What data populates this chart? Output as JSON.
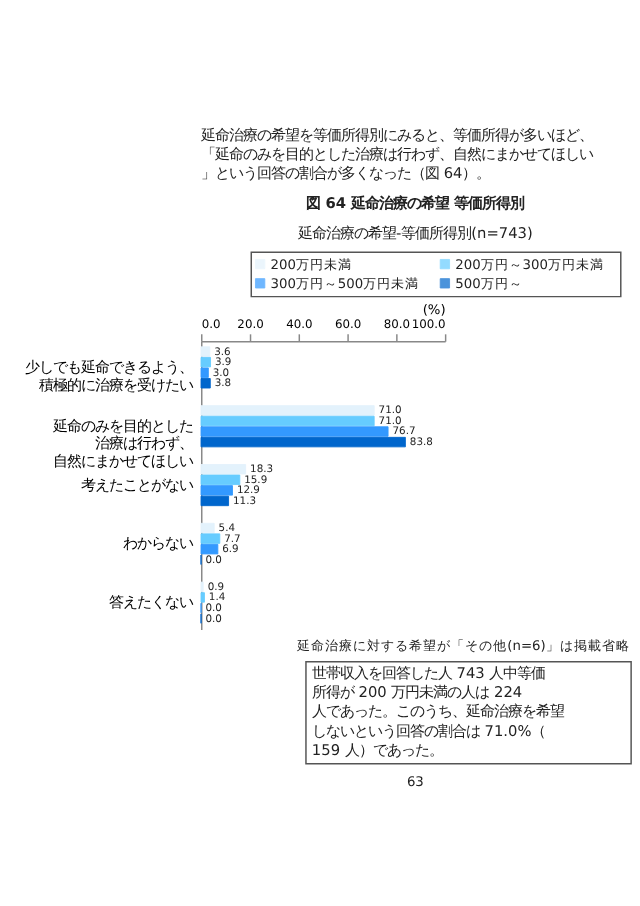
{
  "chart_data": {
    "type": "bar",
    "orientation": "horizontal",
    "title": "図 64 延命治療の希望 等価所得別",
    "subtitle": "延命治療の希望-等価所得別(n=743)",
    "xlabel": "(%)",
    "categories": [
      "少しでも延命できるよう、積極的に治療を受けたい",
      "延命のみを目的とした治療は行わず、自然にまかせてほしい",
      "考えたことがない",
      "わからない",
      "答えたくない"
    ],
    "series": [
      {
        "name": "200万円未満",
        "color": "#e3f2fc",
        "values": [
          3.6,
          71.0,
          18.3,
          5.4,
          0.9
        ],
        "value_labels": [
          "3.6",
          "71.0",
          "18.3",
          "5.4",
          "0.9"
        ]
      },
      {
        "name": "200万円～300万円未満",
        "color": "#66ccff",
        "values": [
          3.9,
          71.0,
          15.9,
          7.7,
          1.4
        ],
        "value_labels": [
          "3.9",
          "71.0",
          "15.9",
          "7.7",
          "1.4"
        ]
      },
      {
        "name": "300万円～500万円未満",
        "color": "#3399ff",
        "values": [
          3.0,
          76.7,
          12.9,
          6.9,
          0.0
        ],
        "value_labels": [
          "3.0",
          "76.7",
          "12.9",
          "6.9",
          "0.0"
        ]
      },
      {
        "name": "500万円～",
        "color": "#0066cc",
        "values": [
          3.8,
          83.8,
          11.3,
          0.0,
          0.0
        ],
        "value_labels": [
          "3.8",
          "83.8",
          "11.3",
          "0.0",
          "0.0"
        ]
      }
    ],
    "xlim": [
      0,
      100
    ],
    "xticks": [
      {
        "value": 0,
        "label": "0.0"
      },
      {
        "value": 20,
        "label": "20.0"
      },
      {
        "value": 40,
        "label": "40.0"
      },
      {
        "value": 60,
        "label": "60.0"
      },
      {
        "value": 80,
        "label": "80.0"
      },
      {
        "value": 100,
        "label": "100.0"
      }
    ],
    "legend": "top",
    "grid": false,
    "annotations": [
      "延命治療の希望を等価所得別にみると、等価所得が多いほど、「延命のみを目的とした治療は行わず、自然にまかせてほしい」という回答の割合が多くなった（図 64）。",
      "延命治療に対する希望が「その他(n=6)」は掲載省略",
      "世帯収入を回答した人 743 人中等価所得が 200 万円未満の人は 224 人であった。このうち、延命治療を希望しないという回答の割合は 71.0%（159 人）であった。",
      "63"
    ]
  }
}
